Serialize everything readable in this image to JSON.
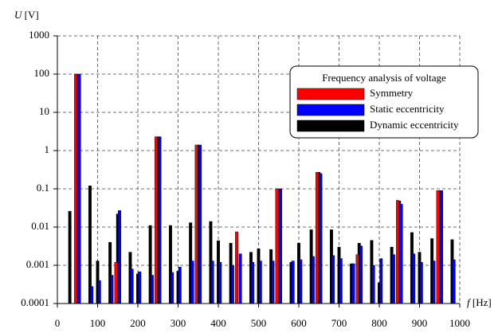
{
  "chart_data": {
    "type": "bar",
    "y_label": {
      "symbol": "U",
      "unit": "[V]"
    },
    "x_label": {
      "symbol": "f",
      "unit": "[Hz]"
    },
    "legend_title": "Frequency analysis of voltage",
    "legend": "upper right",
    "log_y": true,
    "grid": true,
    "xlim": [
      0,
      1000
    ],
    "xticks": [
      0,
      100,
      200,
      300,
      400,
      500,
      600,
      700,
      800,
      900,
      1000
    ],
    "ylim": [
      0.0001,
      1000
    ],
    "yticks": [
      0.0001,
      0.001,
      0.01,
      0.1,
      1,
      10,
      100,
      1000
    ],
    "x": [
      31,
      50,
      81,
      100,
      131,
      150,
      181,
      200,
      231,
      250,
      281,
      300,
      331,
      350,
      381,
      400,
      431,
      450,
      481,
      500,
      531,
      550,
      581,
      600,
      631,
      650,
      681,
      700,
      731,
      750,
      781,
      800,
      831,
      850,
      881,
      900,
      931,
      950,
      981
    ],
    "series": [
      {
        "name": "Symmetry",
        "color": "#ff0000",
        "values": [
          null,
          100,
          null,
          null,
          null,
          0.0012,
          null,
          null,
          null,
          2.3,
          null,
          null,
          null,
          1.4,
          null,
          null,
          null,
          0.0075,
          null,
          null,
          null,
          0.1,
          null,
          null,
          null,
          0.27,
          null,
          null,
          null,
          0.0019,
          null,
          null,
          null,
          0.05,
          null,
          null,
          null,
          0.09,
          null
        ]
      },
      {
        "name": "Static eccentricity",
        "color": "#0000ff",
        "values": [
          null,
          100,
          0.00028,
          0.0004,
          0.00055,
          0.027,
          0.0008,
          0.00068,
          0.00055,
          2.3,
          0.00065,
          0.0009,
          0.0013,
          1.4,
          0.0013,
          0.0012,
          0.001,
          0.002,
          0.0012,
          0.0013,
          0.0013,
          0.1,
          0.0013,
          0.0014,
          0.0017,
          0.25,
          0.0018,
          0.0015,
          0.0011,
          0.0032,
          0.001,
          0.0015,
          0.0019,
          0.04,
          0.002,
          0.0012,
          0.0013,
          0.09,
          0.0014
        ]
      },
      {
        "name": "Dynamic eccentricity",
        "color": "#000000",
        "values": [
          0.026,
          100,
          0.12,
          0.0013,
          0.004,
          0.022,
          0.0022,
          0.0006,
          0.011,
          2.3,
          0.011,
          0.0007,
          0.013,
          1.4,
          0.014,
          0.0044,
          0.0038,
          null,
          0.0022,
          0.0027,
          0.0026,
          0.1,
          0.0012,
          0.0038,
          0.0085,
          0.27,
          0.0085,
          0.003,
          0.0011,
          0.0038,
          0.0045,
          0.00035,
          0.003,
          0.048,
          0.0072,
          0.0022,
          0.005,
          0.09,
          0.0047
        ]
      }
    ]
  }
}
